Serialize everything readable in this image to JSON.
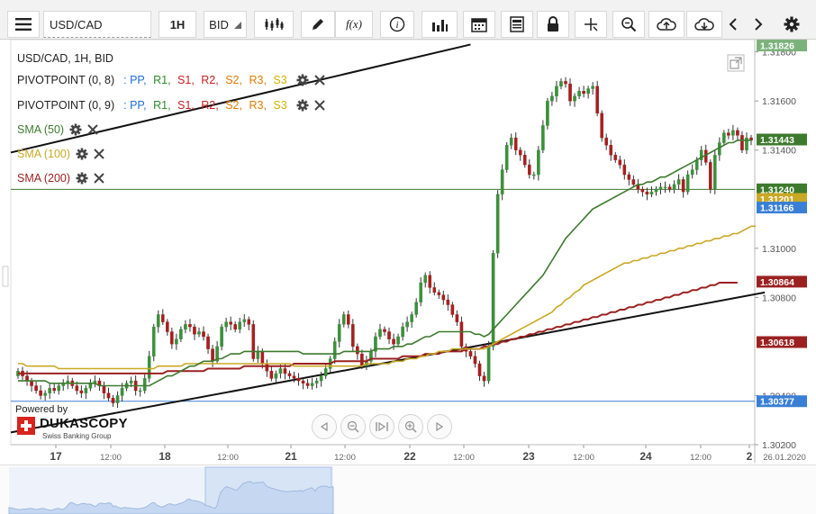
{
  "toolbar": {
    "symbol": "USD/CAD",
    "timeframe": "1H",
    "price_side": "BID",
    "fx_label": "f(x)"
  },
  "legend": {
    "header": "USD/CAD, 1H, BID",
    "pivot_rows": [
      {
        "name": "PIVOTPOINT (0, 8)",
        "levels": [
          ": PP,",
          "R1,",
          "S1,",
          "R2,",
          "S2,",
          "R3,",
          "S3"
        ]
      },
      {
        "name": "PIVOTPOINT (0, 9)",
        "levels": [
          ": PP,",
          "R1,",
          "S1,",
          "R2,",
          "S2,",
          "R3,",
          "S3"
        ]
      }
    ],
    "level_colors": [
      "#1f6fd6",
      "#2e8b2e",
      "#cc1f1f",
      "#cc1f1f",
      "#e07b00",
      "#e07b00",
      "#d4b000"
    ],
    "indicators": [
      {
        "label": "SMA (50)",
        "color": "#3d7a2e"
      },
      {
        "label": "SMA (100)",
        "color": "#c9a825"
      },
      {
        "label": "SMA (200)",
        "color": "#9b2121"
      }
    ]
  },
  "branding": {
    "powered_by": "Powered by",
    "name": "DUKASCOPY",
    "tagline": "Swiss Banking Group"
  },
  "chart_data": {
    "type": "line",
    "title": "USD/CAD, 1H, BID",
    "ylim": [
      1.302,
      1.3185
    ],
    "y_ticks": [
      "1.30200",
      "1.30400",
      "1.30800",
      "1.31000",
      "1.31400",
      "1.31600",
      "1.31800"
    ],
    "x_ticks": [
      "17",
      "12:00",
      "18",
      "12:00",
      "21",
      "12:00",
      "22",
      "12:00",
      "23",
      "12:00",
      "24",
      "12:00",
      "2",
      "26.01.2020"
    ],
    "price_tags": [
      {
        "label": "1.31826",
        "value": 1.31826,
        "color": "#7bb27b"
      },
      {
        "label": "1.31443",
        "value": 1.31443,
        "color": "#3d7a2e"
      },
      {
        "label": "1.31240",
        "value": 1.3124,
        "color": "#3d7a2e"
      },
      {
        "label": "1.31201",
        "value": 1.31201,
        "color": "#c9a825"
      },
      {
        "label": "1.31166",
        "value": 1.31166,
        "color": "#3a7fd5"
      },
      {
        "label": "1.30864",
        "value": 1.30864,
        "color": "#9b2121"
      },
      {
        "label": "1.30618",
        "value": 1.30618,
        "color": "#9b2121"
      },
      {
        "label": "1.30377",
        "value": 1.30377,
        "color": "#3a7fd5"
      }
    ],
    "horizontal_lines": [
      {
        "value": 1.3124,
        "color": "#3d7a2e"
      },
      {
        "value": 1.30377,
        "color": "#3a7fd5"
      }
    ],
    "close": [
      1.305,
      1.3048,
      1.3046,
      1.3044,
      1.3042,
      1.304,
      1.3041,
      1.3043,
      1.3042,
      1.3044,
      1.3045,
      1.3046,
      1.3044,
      1.3042,
      1.3041,
      1.3043,
      1.3045,
      1.3046,
      1.3044,
      1.3041,
      1.3039,
      1.3037,
      1.304,
      1.3043,
      1.3045,
      1.3046,
      1.3042,
      1.3042,
      1.3047,
      1.3056,
      1.3068,
      1.3073,
      1.307,
      1.3066,
      1.3061,
      1.3063,
      1.3067,
      1.3069,
      1.3068,
      1.3065,
      1.3066,
      1.3064,
      1.3059,
      1.3054,
      1.306,
      1.3068,
      1.307,
      1.3069,
      1.3067,
      1.307,
      1.3071,
      1.3069,
      1.3055,
      1.3058,
      1.3053,
      1.305,
      1.3047,
      1.3049,
      1.3051,
      1.3049,
      1.3048,
      1.3047,
      1.3046,
      1.3045,
      1.3044,
      1.3045,
      1.3046,
      1.3048,
      1.3051,
      1.3055,
      1.3062,
      1.3069,
      1.3073,
      1.3069,
      1.306,
      1.3057,
      1.3052,
      1.3054,
      1.3058,
      1.3064,
      1.3067,
      1.3066,
      1.3063,
      1.3061,
      1.3064,
      1.3068,
      1.307,
      1.3073,
      1.3078,
      1.3086,
      1.3089,
      1.3084,
      1.3082,
      1.3081,
      1.3079,
      1.3077,
      1.3073,
      1.307,
      1.306,
      1.3058,
      1.3056,
      1.3053,
      1.3048,
      1.3046,
      1.306,
      1.3098,
      1.3122,
      1.3132,
      1.3142,
      1.3145,
      1.314,
      1.3138,
      1.3134,
      1.313,
      1.313,
      1.314,
      1.315,
      1.316,
      1.3162,
      1.3166,
      1.3168,
      1.3167,
      1.316,
      1.3162,
      1.3164,
      1.3163,
      1.3165,
      1.3166,
      1.3155,
      1.3145,
      1.3142,
      1.3138,
      1.3136,
      1.3134,
      1.313,
      1.3128,
      1.3126,
      1.3124,
      1.3123,
      1.3122,
      1.3123,
      1.3124,
      1.3125,
      1.3125,
      1.3124,
      1.3126,
      1.3128,
      1.3123,
      1.313,
      1.3132,
      1.3136,
      1.314,
      1.3135,
      1.3124,
      1.3138,
      1.3143,
      1.3147,
      1.3146,
      1.3148,
      1.3146,
      1.314,
      1.3145,
      1.3144
    ],
    "sma50": [
      1.3046,
      1.3046,
      1.3046,
      1.3046,
      1.3046,
      1.3046,
      1.3046,
      1.3045,
      1.3045,
      1.3045,
      1.3045,
      1.3045,
      1.3045,
      1.3045,
      1.3045,
      1.3045,
      1.3045,
      1.3045,
      1.3044,
      1.3044,
      1.3044,
      1.3044,
      1.3044,
      1.3044,
      1.3044,
      1.3044,
      1.3044,
      1.3044,
      1.3044,
      1.3044,
      1.3045,
      1.3046,
      1.3047,
      1.3048,
      1.3048,
      1.3049,
      1.305,
      1.3051,
      1.3052,
      1.3052,
      1.3053,
      1.3054,
      1.3054,
      1.3054,
      1.3055,
      1.3055,
      1.3056,
      1.3057,
      1.3057,
      1.3057,
      1.3058,
      1.3058,
      1.3058,
      1.3058,
      1.3058,
      1.3058,
      1.3058,
      1.3058,
      1.3058,
      1.3058,
      1.3058,
      1.3058,
      1.3058,
      1.3057,
      1.3057,
      1.3057,
      1.3057,
      1.3057,
      1.3057,
      1.3057,
      1.3057,
      1.3057,
      1.3058,
      1.3058,
      1.3058,
      1.3058,
      1.3058,
      1.3058,
      1.3058,
      1.3059,
      1.3059,
      1.3059,
      1.3059,
      1.306,
      1.306,
      1.306,
      1.3061,
      1.3061,
      1.3062,
      1.3063,
      1.3064,
      1.3064,
      1.3065,
      1.3066,
      1.3066,
      1.3066,
      1.3066,
      1.3066,
      1.3066,
      1.3066,
      1.3066,
      1.3065,
      1.3065,
      1.3064,
      1.3065,
      1.3067,
      1.3069,
      1.3071,
      1.3073,
      1.3075,
      1.3077,
      1.3079,
      1.3081,
      1.3083,
      1.3085,
      1.3087,
      1.3089,
      1.3092,
      1.3095,
      1.3098,
      1.3101,
      1.3104,
      1.3106,
      1.3108,
      1.311,
      1.3112,
      1.3114,
      1.3116,
      1.3117,
      1.3118,
      1.3119,
      1.312,
      1.3121,
      1.3122,
      1.3123,
      1.3124,
      1.3125,
      1.3126,
      1.3126,
      1.3127,
      1.3127,
      1.3128,
      1.3129,
      1.3129,
      1.313,
      1.3131,
      1.3132,
      1.3133,
      1.3134,
      1.3135,
      1.3136,
      1.3137,
      1.3138,
      1.3139,
      1.314,
      1.3141,
      1.3142,
      1.3143,
      1.3143,
      1.3144,
      1.3144,
      1.3144,
      1.3144
    ],
    "sma100": [
      1.3053,
      1.3053,
      1.3052,
      1.3052,
      1.3052,
      1.3052,
      1.3052,
      1.3052,
      1.3052,
      1.3051,
      1.3051,
      1.3051,
      1.3051,
      1.3051,
      1.3051,
      1.3051,
      1.3051,
      1.3051,
      1.3051,
      1.3051,
      1.3051,
      1.3051,
      1.3051,
      1.3051,
      1.3051,
      1.3051,
      1.3051,
      1.3051,
      1.3051,
      1.3051,
      1.3051,
      1.3052,
      1.3052,
      1.3052,
      1.3052,
      1.3052,
      1.3052,
      1.3053,
      1.3053,
      1.3053,
      1.3053,
      1.3053,
      1.3053,
      1.3053,
      1.3053,
      1.3053,
      1.3053,
      1.3053,
      1.3053,
      1.3053,
      1.3053,
      1.3053,
      1.3053,
      1.3053,
      1.3053,
      1.3053,
      1.3053,
      1.3053,
      1.3053,
      1.3053,
      1.3053,
      1.3052,
      1.3052,
      1.3052,
      1.3052,
      1.3052,
      1.3052,
      1.3052,
      1.3052,
      1.3052,
      1.3052,
      1.3052,
      1.3052,
      1.3052,
      1.3052,
      1.3052,
      1.3052,
      1.3053,
      1.3053,
      1.3053,
      1.3053,
      1.3053,
      1.3053,
      1.3054,
      1.3054,
      1.3054,
      1.3055,
      1.3055,
      1.3055,
      1.3056,
      1.3056,
      1.3057,
      1.3057,
      1.3058,
      1.3058,
      1.3058,
      1.3059,
      1.3059,
      1.3059,
      1.3059,
      1.3059,
      1.3059,
      1.3059,
      1.3059,
      1.306,
      1.3061,
      1.3062,
      1.3063,
      1.3064,
      1.3065,
      1.3066,
      1.3067,
      1.3068,
      1.3069,
      1.307,
      1.3071,
      1.3072,
      1.3073,
      1.3074,
      1.3076,
      1.3077,
      1.3079,
      1.308,
      1.3082,
      1.3083,
      1.3085,
      1.3086,
      1.3087,
      1.3088,
      1.3089,
      1.309,
      1.3091,
      1.3092,
      1.3093,
      1.3094,
      1.3094,
      1.3095,
      1.3095,
      1.3096,
      1.3096,
      1.3097,
      1.3097,
      1.3098,
      1.3098,
      1.3099,
      1.3099,
      1.31,
      1.31,
      1.3101,
      1.3101,
      1.3102,
      1.3102,
      1.3103,
      1.3103,
      1.3104,
      1.3104,
      1.3105,
      1.3105,
      1.3106,
      1.3106,
      1.3107,
      1.3108,
      1.3109,
      1.3109
    ],
    "sma200": [
      1.3049,
      1.3049,
      1.3049,
      1.3049,
      1.3049,
      1.3049,
      1.3049,
      1.3049,
      1.3049,
      1.3049,
      1.3049,
      1.3049,
      1.3049,
      1.3049,
      1.3049,
      1.3049,
      1.3049,
      1.3049,
      1.3049,
      1.3049,
      1.3049,
      1.3049,
      1.3049,
      1.3049,
      1.3049,
      1.3049,
      1.3049,
      1.3049,
      1.3049,
      1.3049,
      1.3049,
      1.3049,
      1.3049,
      1.305,
      1.305,
      1.305,
      1.305,
      1.305,
      1.305,
      1.305,
      1.305,
      1.305,
      1.3051,
      1.3051,
      1.3051,
      1.3051,
      1.3051,
      1.3051,
      1.3051,
      1.3051,
      1.3052,
      1.3052,
      1.3052,
      1.3052,
      1.3052,
      1.3052,
      1.3052,
      1.3052,
      1.3052,
      1.3052,
      1.3052,
      1.3053,
      1.3053,
      1.3053,
      1.3053,
      1.3053,
      1.3053,
      1.3053,
      1.3053,
      1.3053,
      1.3054,
      1.3054,
      1.3054,
      1.3054,
      1.3054,
      1.3054,
      1.3054,
      1.3054,
      1.3055,
      1.3055,
      1.3055,
      1.3055,
      1.3055,
      1.3055,
      1.3055,
      1.3056,
      1.3056,
      1.3056,
      1.3056,
      1.3056,
      1.3057,
      1.3057,
      1.3057,
      1.3057,
      1.3058,
      1.3058,
      1.3058,
      1.3058,
      1.3058,
      1.3059,
      1.3059,
      1.3059,
      1.3059,
      1.306,
      1.306,
      1.3061,
      1.3061,
      1.3062,
      1.3062,
      1.3063,
      1.3063,
      1.3064,
      1.3064,
      1.3065,
      1.3065,
      1.3066,
      1.3066,
      1.3067,
      1.3067,
      1.3068,
      1.3068,
      1.3069,
      1.3069,
      1.307,
      1.307,
      1.3071,
      1.3071,
      1.3072,
      1.3072,
      1.3073,
      1.3073,
      1.3074,
      1.3074,
      1.3075,
      1.3075,
      1.3076,
      1.3076,
      1.3077,
      1.3077,
      1.3078,
      1.3078,
      1.3079,
      1.3079,
      1.308,
      1.308,
      1.3081,
      1.3081,
      1.3082,
      1.3082,
      1.3083,
      1.3083,
      1.3084,
      1.3084,
      1.3085,
      1.3085,
      1.3086,
      1.3086,
      1.3086,
      1.3086,
      1.3086
    ],
    "trendlines": [
      {
        "name": "upper",
        "from": [
          0,
          1.3139
        ],
        "to": [
          100,
          1.3183
        ],
        "color": "#111111"
      },
      {
        "name": "lower",
        "from": [
          0,
          1.3025
        ],
        "to": [
          165,
          1.3082
        ],
        "color": "#111111"
      }
    ]
  }
}
